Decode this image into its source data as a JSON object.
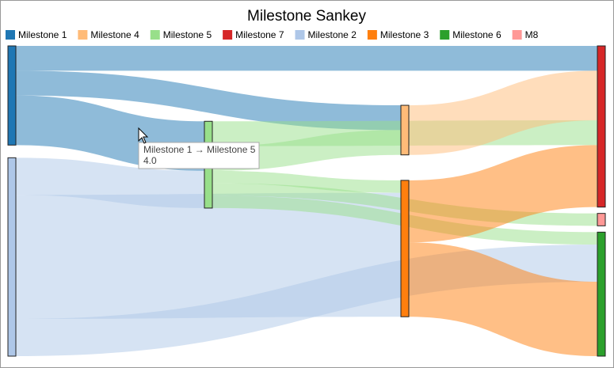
{
  "chart_data": {
    "type": "sankey",
    "title": "Milestone Sankey",
    "nodes": [
      {
        "name": "Milestone 1",
        "color": "#1f77b4"
      },
      {
        "name": "Milestone 4",
        "color": "#ffbb78"
      },
      {
        "name": "Milestone 5",
        "color": "#98df8a"
      },
      {
        "name": "Milestone 7",
        "color": "#d62728"
      },
      {
        "name": "Milestone 2",
        "color": "#aec7e8"
      },
      {
        "name": "Milestone 3",
        "color": "#ff7f0e"
      },
      {
        "name": "Milestone 6",
        "color": "#2ca02c"
      },
      {
        "name": "M8",
        "color": "#ff9896"
      }
    ],
    "links": [
      {
        "source": "Milestone 1",
        "target": "Milestone 7",
        "value": 2
      },
      {
        "source": "Milestone 1",
        "target": "Milestone 4",
        "value": 2
      },
      {
        "source": "Milestone 1",
        "target": "Milestone 5",
        "value": 4
      },
      {
        "source": "Milestone 2",
        "target": "Milestone 5",
        "value": 3
      },
      {
        "source": "Milestone 2",
        "target": "Milestone 3",
        "value": 10
      },
      {
        "source": "Milestone 5",
        "target": "Milestone 4",
        "value": 2
      },
      {
        "source": "Milestone 5",
        "target": "Milestone 7",
        "value": 2
      },
      {
        "source": "Milestone 5",
        "target": "Milestone 3",
        "value": 1
      },
      {
        "source": "Milestone 5",
        "target": "M8",
        "value": 1
      },
      {
        "source": "Milestone 5",
        "target": "Milestone 6",
        "value": 1
      },
      {
        "source": "Milestone 2",
        "target": "Milestone 6",
        "value": 3
      },
      {
        "source": "Milestone 4",
        "target": "Milestone 7",
        "value": 4
      },
      {
        "source": "Milestone 3",
        "target": "Milestone 7",
        "value": 5
      },
      {
        "source": "Milestone 3",
        "target": "Milestone 6",
        "value": 6
      }
    ],
    "tooltip": {
      "link": "Milestone 1 → Milestone 5",
      "value": "4.0"
    }
  }
}
